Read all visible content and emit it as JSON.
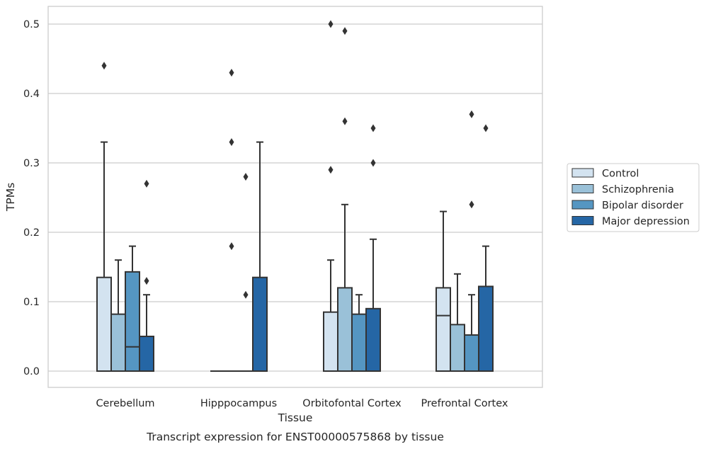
{
  "chart_data": {
    "type": "box",
    "title": "",
    "caption": "Transcript expression for ENST00000575868 by tissue",
    "xlabel": "Tissue",
    "ylabel": "TPMs",
    "ylim": [
      -0.025,
      0.525
    ],
    "yticks": [
      "0.0",
      "0.1",
      "0.2",
      "0.3",
      "0.4",
      "0.5"
    ],
    "grid": "horizontal",
    "legend_position": "right",
    "categories": [
      "Cerebellum",
      "Hipppocampus",
      "Orbitofontal Cortex",
      "Prefrontal Cortex"
    ],
    "series": [
      {
        "name": "Control",
        "color": "#d3e3f0",
        "boxes": [
          {
            "min": 0,
            "q1": 0,
            "median": 0,
            "q3": 0.135,
            "max": 0.33,
            "outliers": [
              0.44
            ]
          },
          {
            "min": 0,
            "q1": 0,
            "median": 0,
            "q3": 0,
            "max": 0,
            "outliers": []
          },
          {
            "min": 0,
            "q1": 0,
            "median": 0,
            "q3": 0.085,
            "max": 0.16,
            "outliers": [
              0.29,
              0.5
            ]
          },
          {
            "min": 0,
            "q1": 0,
            "median": 0.08,
            "q3": 0.12,
            "max": 0.23,
            "outliers": []
          }
        ]
      },
      {
        "name": "Schizophrenia",
        "color": "#9ac1d8",
        "boxes": [
          {
            "min": 0,
            "q1": 0,
            "median": 0,
            "q3": 0.082,
            "max": 0.16,
            "outliers": []
          },
          {
            "min": 0,
            "q1": 0,
            "median": 0,
            "q3": 0,
            "max": 0,
            "outliers": [
              0.18,
              0.33,
              0.43
            ]
          },
          {
            "min": 0,
            "q1": 0,
            "median": 0,
            "q3": 0.12,
            "max": 0.24,
            "outliers": [
              0.36,
              0.49
            ]
          },
          {
            "min": 0,
            "q1": 0,
            "median": 0,
            "q3": 0.067,
            "max": 0.14,
            "outliers": []
          }
        ]
      },
      {
        "name": "Bipolar disorder",
        "color": "#5596c2",
        "boxes": [
          {
            "min": 0,
            "q1": 0,
            "median": 0.035,
            "q3": 0.143,
            "max": 0.18,
            "outliers": []
          },
          {
            "min": 0,
            "q1": 0,
            "median": 0,
            "q3": 0,
            "max": 0,
            "outliers": [
              0.11,
              0.28
            ]
          },
          {
            "min": 0,
            "q1": 0,
            "median": 0,
            "q3": 0.082,
            "max": 0.11,
            "outliers": []
          },
          {
            "min": 0,
            "q1": 0,
            "median": 0,
            "q3": 0.052,
            "max": 0.11,
            "outliers": [
              0.24,
              0.37
            ]
          }
        ]
      },
      {
        "name": "Major depression",
        "color": "#2566a5",
        "boxes": [
          {
            "min": 0,
            "q1": 0,
            "median": 0,
            "q3": 0.05,
            "max": 0.11,
            "outliers": [
              0.13,
              0.27
            ]
          },
          {
            "min": 0,
            "q1": 0,
            "median": 0,
            "q3": 0.135,
            "max": 0.33,
            "outliers": []
          },
          {
            "min": 0,
            "q1": 0,
            "median": 0,
            "q3": 0.09,
            "max": 0.19,
            "outliers": [
              0.3,
              0.35
            ]
          },
          {
            "min": 0,
            "q1": 0,
            "median": 0,
            "q3": 0.122,
            "max": 0.18,
            "outliers": [
              0.35
            ]
          }
        ]
      }
    ]
  }
}
